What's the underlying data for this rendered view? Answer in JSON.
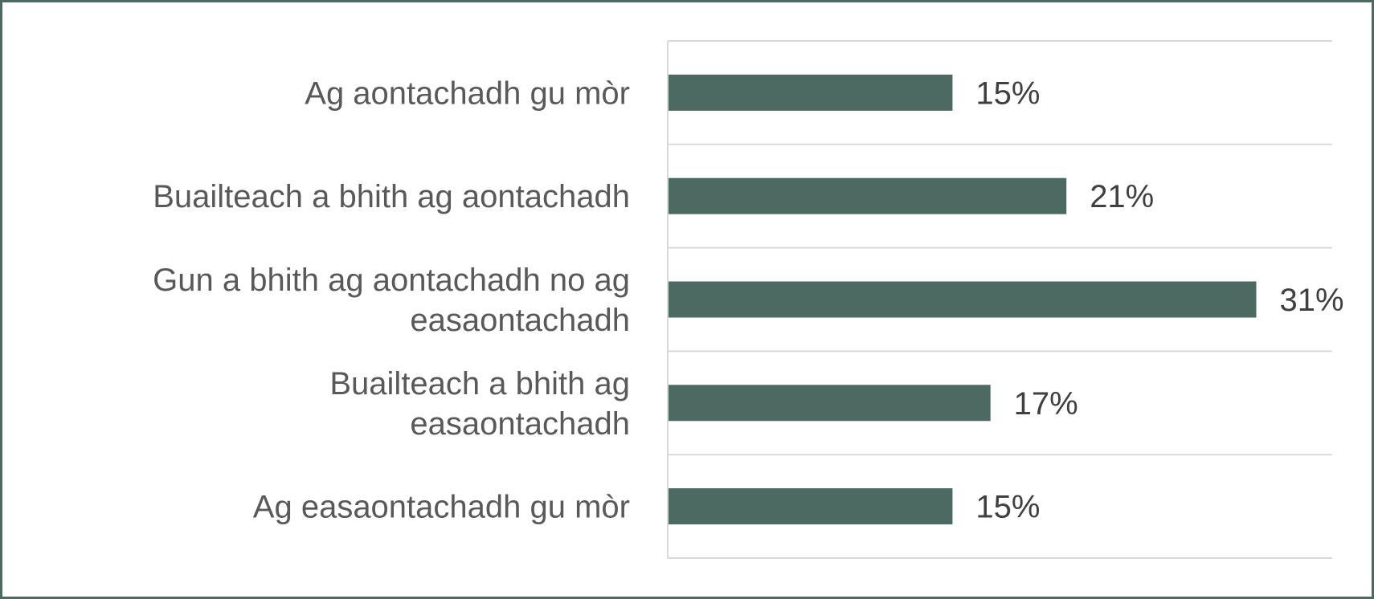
{
  "colors": {
    "bar": "#4c6a61",
    "frame": "#4c6a61",
    "gridline": "#d9d9d9",
    "category_text": "#595959",
    "value_text": "#404040"
  },
  "chart_data": {
    "type": "bar",
    "orientation": "horizontal",
    "categories": [
      "Ag aontachadh gu mòr",
      "Buailteach a bhith ag aontachadh",
      "Gun a bhith ag aontachadh no ag easaontachadh",
      "Buailteach a bhith ag easaontachadh",
      "Ag easaontachadh gu mòr"
    ],
    "values": [
      15,
      21,
      31,
      17,
      15
    ],
    "value_labels": [
      "15%",
      "21%",
      "31%",
      "17%",
      "15%"
    ],
    "unit": "%",
    "xlim": [
      0,
      35
    ],
    "grid": true,
    "legend": false
  }
}
